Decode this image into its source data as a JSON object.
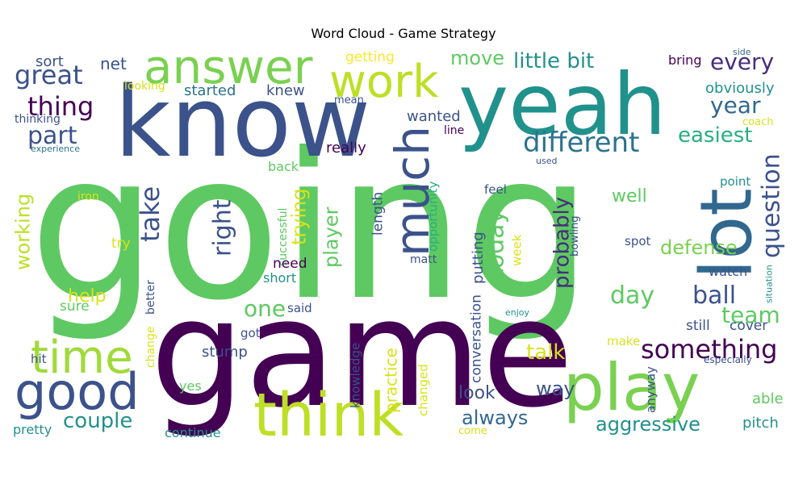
{
  "title": "Word Cloud - Game Strategy",
  "words": [
    {
      "text": "going",
      "color": "#5ec962"
    },
    {
      "text": "game",
      "color": "#440154"
    },
    {
      "text": "know",
      "color": "#3b528b"
    },
    {
      "text": "yeah",
      "color": "#21918c"
    },
    {
      "text": "play",
      "color": "#7ad151"
    },
    {
      "text": "think",
      "color": "#bddf26"
    },
    {
      "text": "lot",
      "color": "#31688e"
    },
    {
      "text": "answer",
      "color": "#7ad151"
    },
    {
      "text": "work",
      "color": "#bddf26"
    },
    {
      "text": "much",
      "color": "#3b528b"
    },
    {
      "text": "good",
      "color": "#3b528b"
    },
    {
      "text": "time",
      "color": "#a0da39"
    },
    {
      "text": "great",
      "color": "#3b528b"
    },
    {
      "text": "thing",
      "color": "#440154"
    },
    {
      "text": "part",
      "color": "#3b528b"
    },
    {
      "text": "sort",
      "color": "#3b528b"
    },
    {
      "text": "net",
      "color": "#3b528b"
    },
    {
      "text": "getting",
      "color": "#fde725"
    },
    {
      "text": "move",
      "color": "#5ec962"
    },
    {
      "text": "little bit",
      "color": "#21918c"
    },
    {
      "text": "every",
      "color": "#472d7b"
    },
    {
      "text": "bring",
      "color": "#440154"
    },
    {
      "text": "side",
      "color": "#31688e"
    },
    {
      "text": "year",
      "color": "#31688e"
    },
    {
      "text": "obviously",
      "color": "#21918c"
    },
    {
      "text": "looking",
      "color": "#d8e219"
    },
    {
      "text": "started",
      "color": "#2c728e"
    },
    {
      "text": "knew",
      "color": "#3b528b"
    },
    {
      "text": "mean",
      "color": "#3b528b"
    },
    {
      "text": "wanted",
      "color": "#3b528b"
    },
    {
      "text": "coach",
      "color": "#d8e219"
    },
    {
      "text": "line",
      "color": "#440154"
    },
    {
      "text": "thinking",
      "color": "#3b528b"
    },
    {
      "text": "experience",
      "color": "#2c728e"
    },
    {
      "text": "different",
      "color": "#2c728e"
    },
    {
      "text": "easiest",
      "color": "#28ae80"
    },
    {
      "text": "really",
      "color": "#440154"
    },
    {
      "text": "back",
      "color": "#5ec962"
    },
    {
      "text": "used",
      "color": "#3b528b"
    },
    {
      "text": "question",
      "color": "#3b528b"
    },
    {
      "text": "point",
      "color": "#21918c"
    },
    {
      "text": "iron",
      "color": "#d8e219"
    },
    {
      "text": "take",
      "color": "#3b528b"
    },
    {
      "text": "working",
      "color": "#bddf26"
    },
    {
      "text": "right",
      "color": "#3b528b"
    },
    {
      "text": "trying",
      "color": "#d8e219"
    },
    {
      "text": "successful",
      "color": "#5ec962"
    },
    {
      "text": "length",
      "color": "#3b528b"
    },
    {
      "text": "player",
      "color": "#5ec962"
    },
    {
      "text": "opportunity",
      "color": "#28ae80"
    },
    {
      "text": "feel",
      "color": "#3b528b"
    },
    {
      "text": "well",
      "color": "#5ec962"
    },
    {
      "text": "today",
      "color": "#5ec962"
    },
    {
      "text": "probably",
      "color": "#472d7b"
    },
    {
      "text": "putting",
      "color": "#3b528b"
    },
    {
      "text": "week",
      "color": "#d8e219"
    },
    {
      "text": "bowling",
      "color": "#3b528b"
    },
    {
      "text": "spot",
      "color": "#3b528b"
    },
    {
      "text": "defense",
      "color": "#7ad151"
    },
    {
      "text": "try",
      "color": "#d8e219"
    },
    {
      "text": "matt",
      "color": "#3b528b"
    },
    {
      "text": "need",
      "color": "#440154"
    },
    {
      "text": "short",
      "color": "#21918c"
    },
    {
      "text": "help",
      "color": "#d8e219"
    },
    {
      "text": "better",
      "color": "#3b528b"
    },
    {
      "text": "day",
      "color": "#5ec962"
    },
    {
      "text": "ball",
      "color": "#3b528b"
    },
    {
      "text": "watch",
      "color": "#3b528b"
    },
    {
      "text": "situation",
      "color": "#21918c"
    },
    {
      "text": "one",
      "color": "#5ec962"
    },
    {
      "text": "said",
      "color": "#3b528b"
    },
    {
      "text": "sure",
      "color": "#5ec962"
    },
    {
      "text": "team",
      "color": "#5ec962"
    },
    {
      "text": "enjoy",
      "color": "#21918c"
    },
    {
      "text": "conversation",
      "color": "#3b528b"
    },
    {
      "text": "got",
      "color": "#3b528b"
    },
    {
      "text": "still",
      "color": "#3b528b"
    },
    {
      "text": "cover",
      "color": "#3b528b"
    },
    {
      "text": "change",
      "color": "#d8e219"
    },
    {
      "text": "make",
      "color": "#d8e219"
    },
    {
      "text": "stump",
      "color": "#3b528b"
    },
    {
      "text": "something",
      "color": "#440154"
    },
    {
      "text": "knowledge",
      "color": "#3b528b"
    },
    {
      "text": "practice",
      "color": "#d8e219"
    },
    {
      "text": "changed",
      "color": "#d8e219"
    },
    {
      "text": "talk",
      "color": "#d8e219"
    },
    {
      "text": "especially",
      "color": "#3b528b"
    },
    {
      "text": "hit",
      "color": "#3b528b"
    },
    {
      "text": "yes",
      "color": "#5ec962"
    },
    {
      "text": "look",
      "color": "#3b528b"
    },
    {
      "text": "way",
      "color": "#3b528b"
    },
    {
      "text": "anyway",
      "color": "#3b528b"
    },
    {
      "text": "able",
      "color": "#5ec962"
    },
    {
      "text": "couple",
      "color": "#21918c"
    },
    {
      "text": "always",
      "color": "#31688e"
    },
    {
      "text": "aggressive",
      "color": "#21918c"
    },
    {
      "text": "pitch",
      "color": "#21918c"
    },
    {
      "text": "pretty",
      "color": "#21918c"
    },
    {
      "text": "continue",
      "color": "#21918c"
    },
    {
      "text": "come",
      "color": "#d8e219"
    }
  ]
}
